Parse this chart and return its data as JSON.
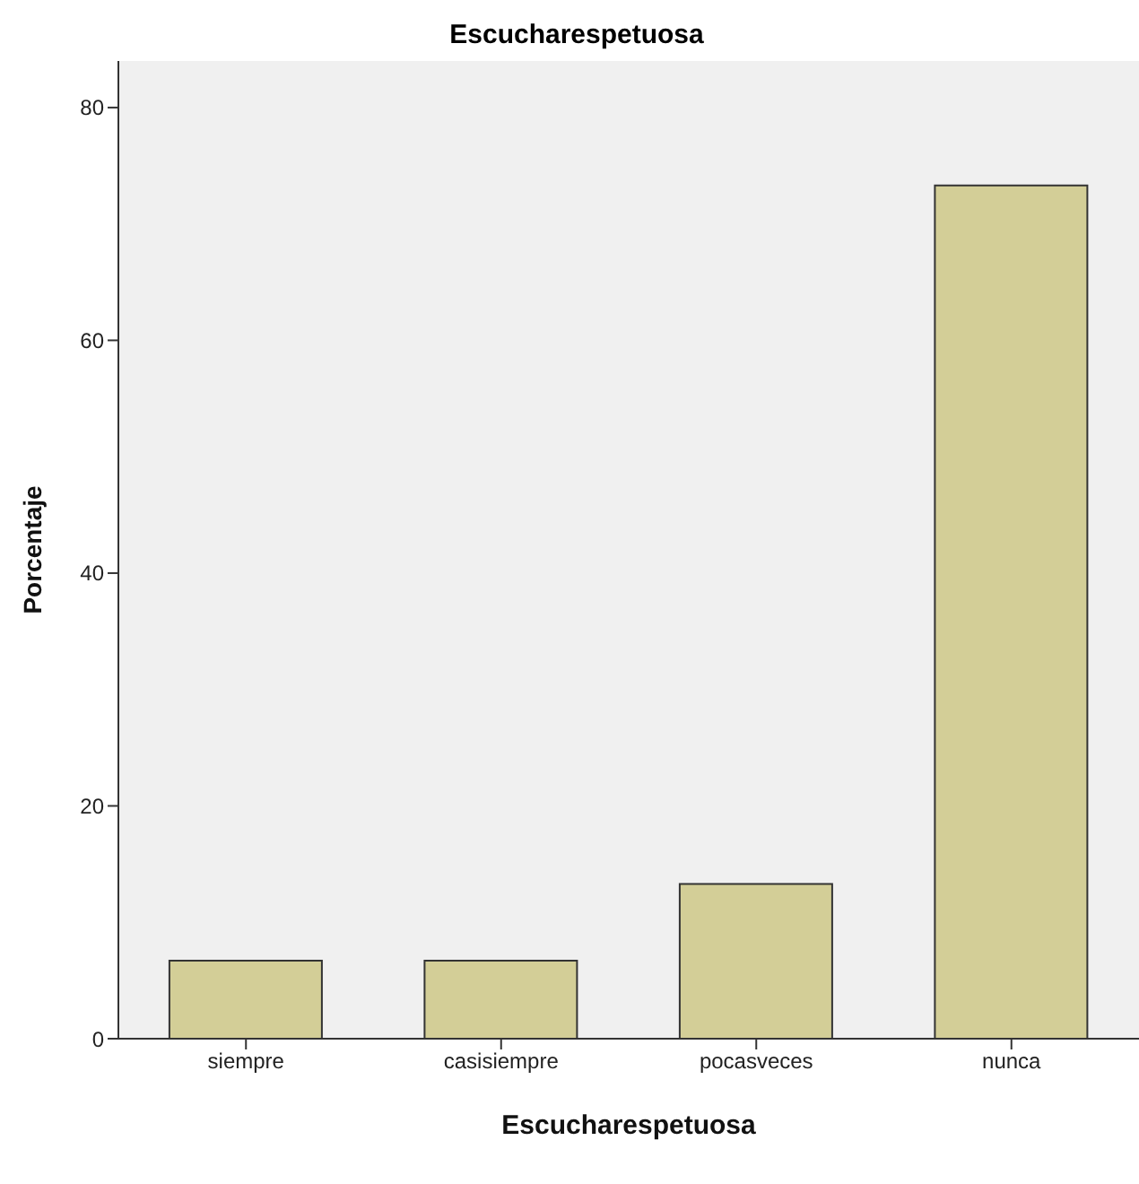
{
  "chart_data": {
    "type": "bar",
    "title": "Escucharespetuosa",
    "xlabel": "Escucharespetuosa",
    "ylabel": "Porcentaje",
    "categories": [
      "siempre",
      "casisiempre",
      "pocasveces",
      "nunca"
    ],
    "values": [
      6.7,
      6.7,
      13.3,
      73.3
    ],
    "color": "#d3ce97",
    "ylim": [
      0,
      84
    ],
    "yticks": [
      0,
      20,
      40,
      60,
      80
    ]
  }
}
